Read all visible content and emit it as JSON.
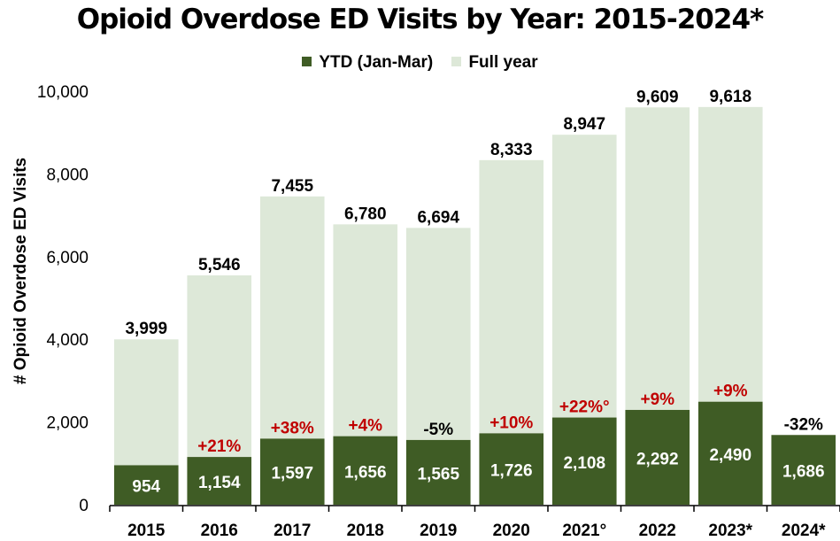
{
  "colors": {
    "ytd": "#3f5c25",
    "full_year": "#dde8d8",
    "change_positive": "#c00000",
    "change_negative": "#000000",
    "axis": "#000000"
  },
  "chart_data": {
    "type": "bar",
    "title": "Opioid Overdose ED Visits by Year: 2015-2024*",
    "ylabel": "# Opioid Overdose ED Visits",
    "xlabel": "",
    "ylim": [
      0,
      10000
    ],
    "yticks": [
      "0",
      "2,000",
      "4,000",
      "6,000",
      "8,000",
      "10,000"
    ],
    "legend": {
      "position": "top-center",
      "entries": [
        "YTD (Jan-Mar)",
        "Full year"
      ]
    },
    "grid": false,
    "categories": [
      "2015",
      "2016",
      "2017",
      "2018",
      "2019",
      "2020",
      "2021°",
      "2022",
      "2023*",
      "2024*"
    ],
    "series": [
      {
        "name": "YTD (Jan-Mar)",
        "values": [
          954,
          1154,
          1597,
          1656,
          1565,
          1726,
          2108,
          2292,
          2490,
          1686
        ],
        "labels": [
          "954",
          "1,154",
          "1,597",
          "1,656",
          "1,565",
          "1,726",
          "2,108",
          "2,292",
          "2,490",
          "1,686"
        ]
      },
      {
        "name": "Full year",
        "values": [
          3999,
          5546,
          7455,
          6780,
          6694,
          8333,
          8947,
          9609,
          9618,
          null
        ],
        "labels": [
          "3,999",
          "5,546",
          "7,455",
          "6,780",
          "6,694",
          "8,333",
          "8,947",
          "9,609",
          "9,618",
          ""
        ]
      }
    ],
    "ytd_change_labels": [
      "",
      "+21%",
      "+38%",
      "+4%",
      "-5%",
      "+10%",
      "+22%°",
      "+9%",
      "+9%",
      "-32%"
    ]
  }
}
